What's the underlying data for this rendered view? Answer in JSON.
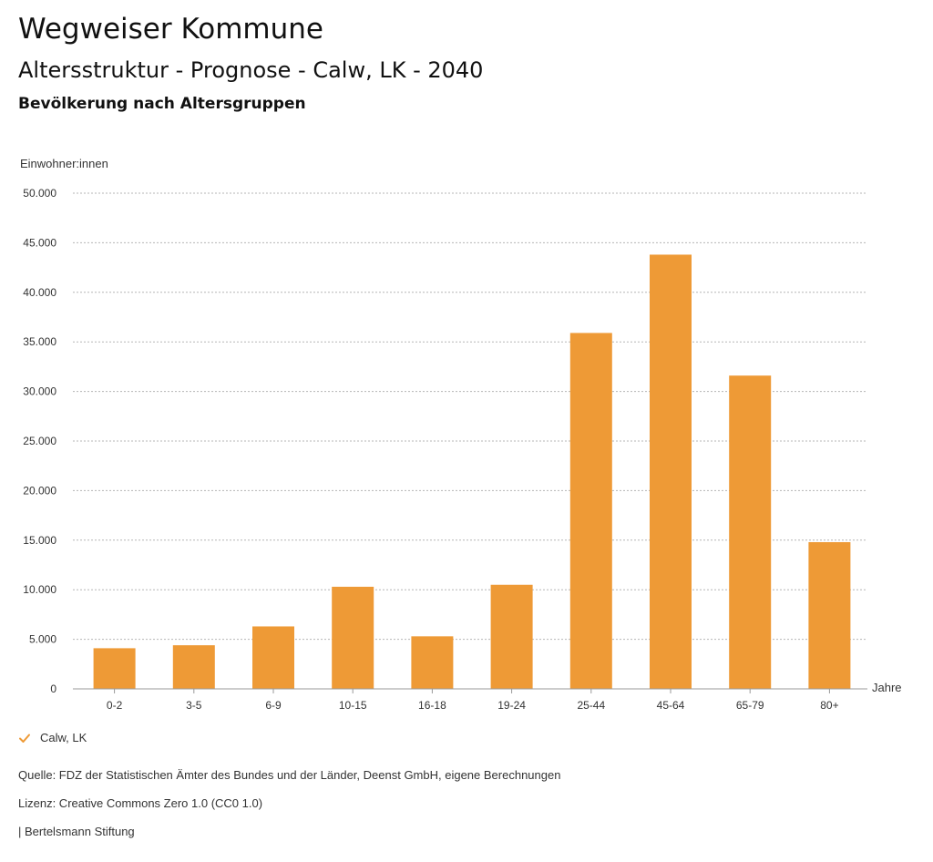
{
  "header": {
    "brand": "Wegweiser Kommune",
    "title": "Altersstruktur - Prognose - Calw, LK - 2040",
    "subtitle": "Bevölkerung nach Altersgruppen"
  },
  "chart_data": {
    "type": "bar",
    "ylabel": "Einwohner:innen",
    "xlabel": "Jahre",
    "categories": [
      "0-2",
      "3-5",
      "6-9",
      "10-15",
      "16-18",
      "19-24",
      "25-44",
      "45-64",
      "65-79",
      "80+"
    ],
    "series": [
      {
        "name": "Calw, LK",
        "values": [
          4100,
          4400,
          6300,
          10300,
          5300,
          10500,
          35900,
          43800,
          31600,
          14800
        ]
      }
    ],
    "ylim": [
      0,
      50000
    ],
    "yticks": [
      0,
      5000,
      10000,
      15000,
      20000,
      25000,
      30000,
      35000,
      40000,
      45000,
      50000
    ],
    "ytick_labels": [
      "0",
      "5.000",
      "10.000",
      "15.000",
      "20.000",
      "25.000",
      "30.000",
      "35.000",
      "40.000",
      "45.000",
      "50.000"
    ],
    "grid": true,
    "legend_position": "bottom-left",
    "bar_color": "#ee9a36"
  },
  "legend": {
    "icon": "check-icon",
    "color": "#ee9a36"
  },
  "footer": {
    "source": "Quelle: FDZ der Statistischen Ämter des Bundes und der Länder, Deenst GmbH, eigene Berechnungen",
    "license": "Lizenz: Creative Commons Zero 1.0 (CC0 1.0)",
    "publisher": "| Bertelsmann Stiftung"
  }
}
